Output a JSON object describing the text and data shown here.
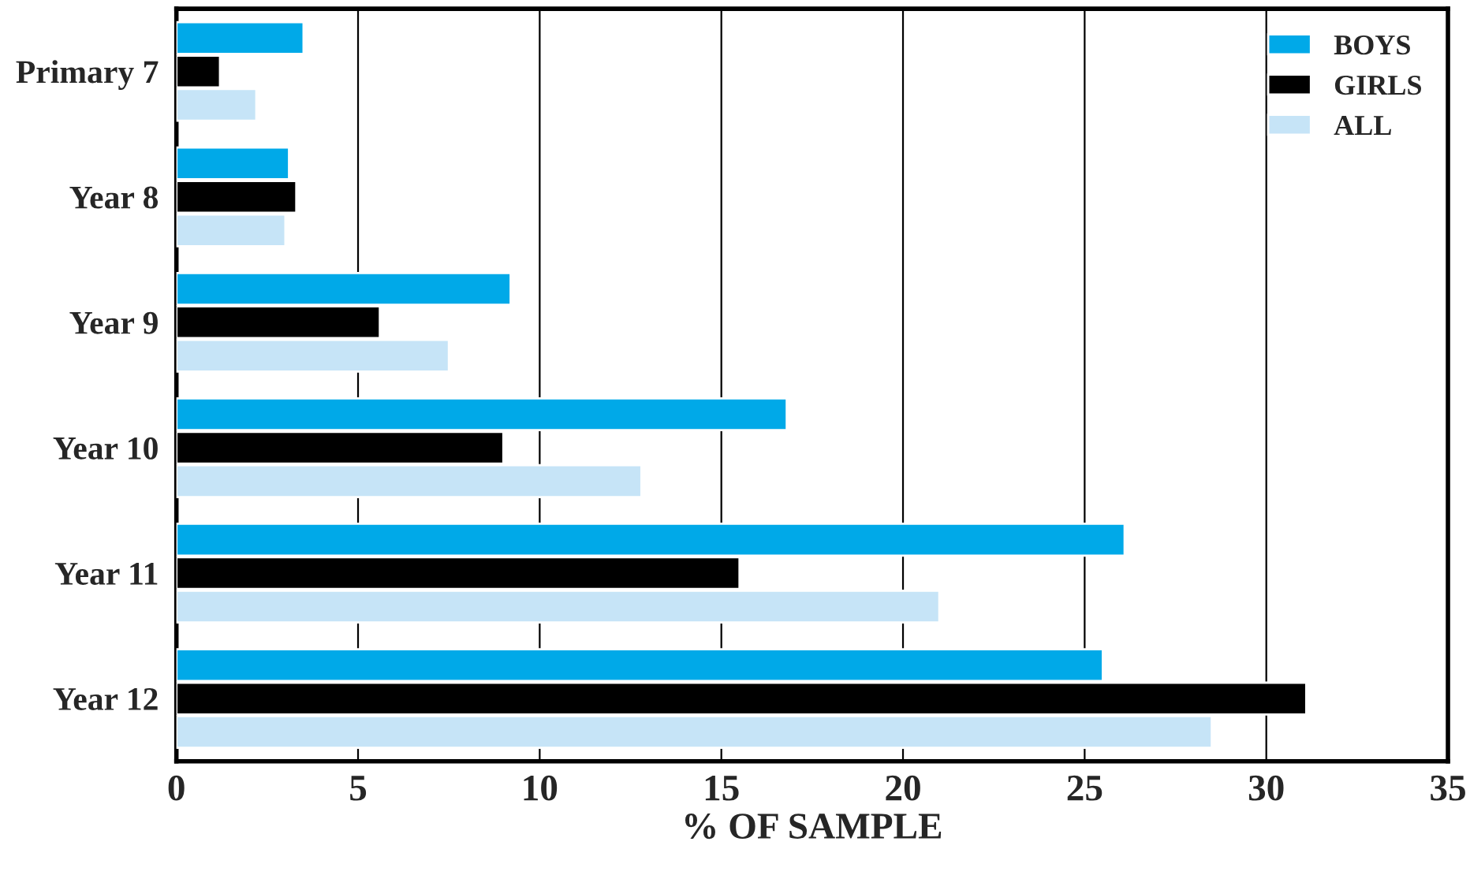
{
  "chart_data": {
    "type": "bar",
    "orientation": "horizontal",
    "xlabel": "% OF SAMPLE",
    "categories": [
      "Primary 7",
      "Year 8",
      "Year 9",
      "Year 10",
      "Year 11",
      "Year 12"
    ],
    "series": [
      {
        "name": "BOYS",
        "color": "#00a9e8",
        "values": [
          3.5,
          3.1,
          9.2,
          16.8,
          26.1,
          25.5
        ]
      },
      {
        "name": "GIRLS",
        "color": "#000000",
        "values": [
          1.2,
          3.3,
          5.6,
          9.0,
          15.5,
          31.1
        ]
      },
      {
        "name": "ALL",
        "color": "#c6e4f7",
        "values": [
          2.2,
          3.0,
          7.5,
          12.8,
          21.0,
          28.5
        ]
      }
    ],
    "xlim": [
      0,
      35
    ],
    "xticks": [
      0,
      5,
      10,
      15,
      20,
      25,
      30,
      35
    ],
    "grid": "x",
    "legend": "top right"
  }
}
